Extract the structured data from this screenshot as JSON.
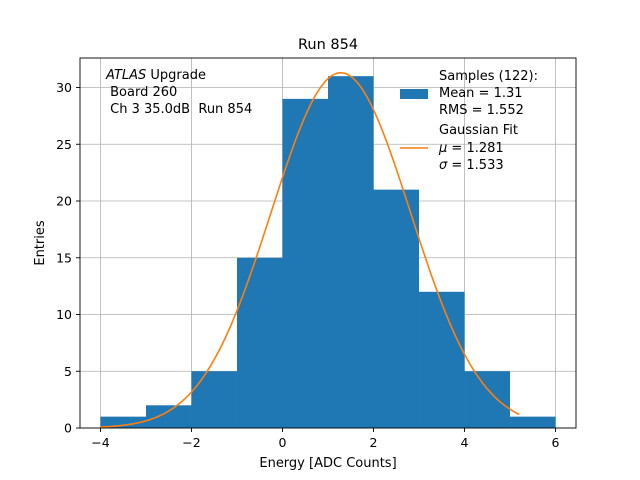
{
  "chart_data": {
    "type": "bar",
    "title": "Run 854",
    "xlabel": "Energy [ADC Counts]",
    "ylabel": "Entries",
    "xlim": [
      -4.45,
      6.45
    ],
    "ylim": [
      0,
      32.6
    ],
    "grid": true,
    "x_ticks": [
      -4,
      -2,
      0,
      2,
      4,
      6
    ],
    "x_tick_labels": [
      "−4",
      "−2",
      "0",
      "2",
      "4",
      "6"
    ],
    "y_ticks": [
      0,
      5,
      10,
      15,
      20,
      25,
      30
    ],
    "y_tick_labels": [
      "0",
      "5",
      "10",
      "15",
      "20",
      "25",
      "30"
    ],
    "histogram": {
      "name": "Samples (122):",
      "color": "#1f77b4",
      "bins": [
        {
          "x0": -4,
          "x1": -3,
          "count": 1
        },
        {
          "x0": -3,
          "x1": -2,
          "count": 2
        },
        {
          "x0": -2,
          "x1": -1,
          "count": 5
        },
        {
          "x0": -1,
          "x1": 0,
          "count": 15
        },
        {
          "x0": 0,
          "x1": 1,
          "count": 29
        },
        {
          "x0": 1,
          "x1": 2,
          "count": 31
        },
        {
          "x0": 2,
          "x1": 3,
          "count": 21
        },
        {
          "x0": 3,
          "x1": 4,
          "count": 12
        },
        {
          "x0": 4,
          "x1": 5,
          "count": 5
        },
        {
          "x0": 5,
          "x1": 6,
          "count": 1
        }
      ]
    },
    "fit": {
      "name": "Gaussian Fit",
      "color": "#ff7f0e",
      "mu": 1.281,
      "sigma": 1.533,
      "amplitude": 31.3,
      "x_range": [
        -4,
        5.2
      ]
    },
    "annotation": {
      "italic_part": "ATLAS",
      "rest_line1": " Upgrade",
      "line2": " Board 260",
      "line3": " Ch 3 35.0dB  Run 854"
    },
    "legend": {
      "position": "top-right",
      "samples_line1": "Samples (122):",
      "samples_line2": "Mean = 1.31",
      "samples_line3": "RMS = 1.552",
      "fit_line1": "Gaussian Fit",
      "fit_line2_symbol": "μ",
      "fit_line2_value": " = 1.281",
      "fit_line3_symbol": "σ",
      "fit_line3_value": " = 1.533"
    }
  }
}
